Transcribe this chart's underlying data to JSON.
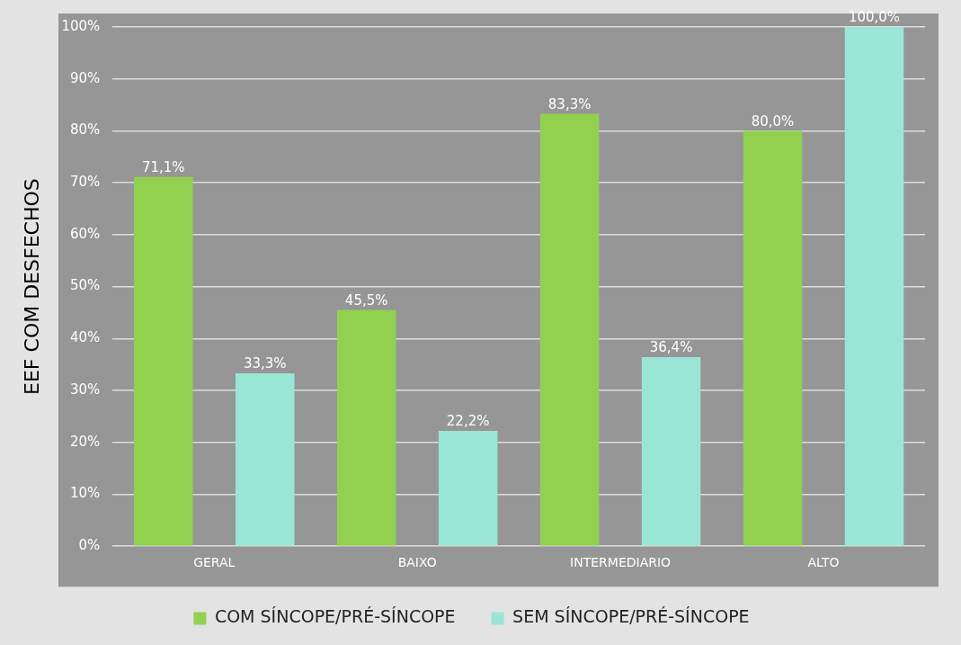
{
  "chart_data": {
    "type": "bar",
    "ylabel": "EEF COM DESFECHOS",
    "categories": [
      "GERAL",
      "BAIXO",
      "INTERMEDIARIO",
      "ALTO"
    ],
    "series": [
      {
        "name": "COM SÍNCOPE/PRÉ-SÍNCOPE",
        "color": "#92d050",
        "values": [
          71.1,
          45.5,
          83.3,
          80.0
        ],
        "value_labels": [
          "71,1%",
          "45,5%",
          "83,3%",
          "80,0%"
        ]
      },
      {
        "name": "SEM SÍNCOPE/PRÉ-SÍNCOPE",
        "color": "#99e6d6",
        "values": [
          33.3,
          22.2,
          36.4,
          100.0
        ],
        "value_labels": [
          "33,3%",
          "22,2%",
          "36,4%",
          "100,0%"
        ]
      }
    ],
    "ylim": [
      0,
      100
    ],
    "yticks": [
      {
        "value": 0,
        "label": "0%"
      },
      {
        "value": 10,
        "label": "10%"
      },
      {
        "value": 20,
        "label": "20%"
      },
      {
        "value": 30,
        "label": "30%"
      },
      {
        "value": 40,
        "label": "40%"
      },
      {
        "value": 50,
        "label": "50%"
      },
      {
        "value": 60,
        "label": "60%"
      },
      {
        "value": 70,
        "label": "70%"
      },
      {
        "value": 80,
        "label": "80%"
      },
      {
        "value": 90,
        "label": "90%"
      },
      {
        "value": 100,
        "label": "100%"
      }
    ],
    "grid": "y",
    "legend": "bottom"
  }
}
